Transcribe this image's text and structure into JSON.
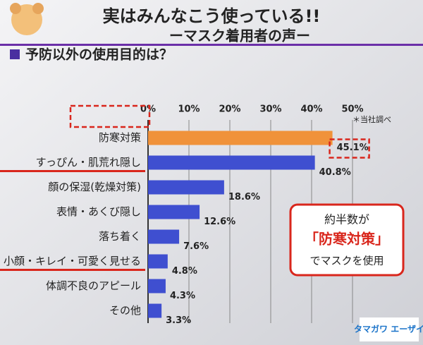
{
  "chart_data": {
    "type": "hbar",
    "title": "実はみんなこう使っている!!",
    "subtitle": "ーマスク着用者の声ー",
    "question": "予防以外の使用目的は？",
    "note": "＊当社調べ",
    "callout": [
      "約半数が",
      "「防寒対策」",
      "でマスクを使用"
    ],
    "brand": "タマガワ エーザイ",
    "categories": [
      "防寒対策",
      "すっぴん・肌荒れ隠し",
      "顔の保湿(乾燥対策)",
      "表情・あくび隠し",
      "落ち着く",
      "小顔・キレイ・可愛く見せる",
      "体調不良のアピール",
      "その他"
    ],
    "values": [
      45.1,
      40.8,
      18.6,
      12.6,
      7.6,
      4.8,
      4.3,
      3.3
    ],
    "value_labels": [
      "45.1%",
      "40.8%",
      "18.6%",
      "12.6%",
      "7.6%",
      "4.8%",
      "4.3%",
      "3.3%"
    ],
    "colors": [
      "#f0923a",
      "#3f4fd0",
      "#3f4fd0",
      "#3f4fd0",
      "#3f4fd0",
      "#3f4fd0",
      "#3f4fd0",
      "#3f4fd0"
    ],
    "xlim": [
      0,
      50
    ],
    "xticks": [
      {
        "value": 0,
        "label": "0%"
      },
      {
        "value": 10,
        "label": "10%"
      },
      {
        "value": 20,
        "label": "20%"
      },
      {
        "value": 30,
        "label": "30%"
      },
      {
        "value": 40,
        "label": "40%"
      },
      {
        "value": 50,
        "label": "50%"
      }
    ],
    "grid": true
  }
}
